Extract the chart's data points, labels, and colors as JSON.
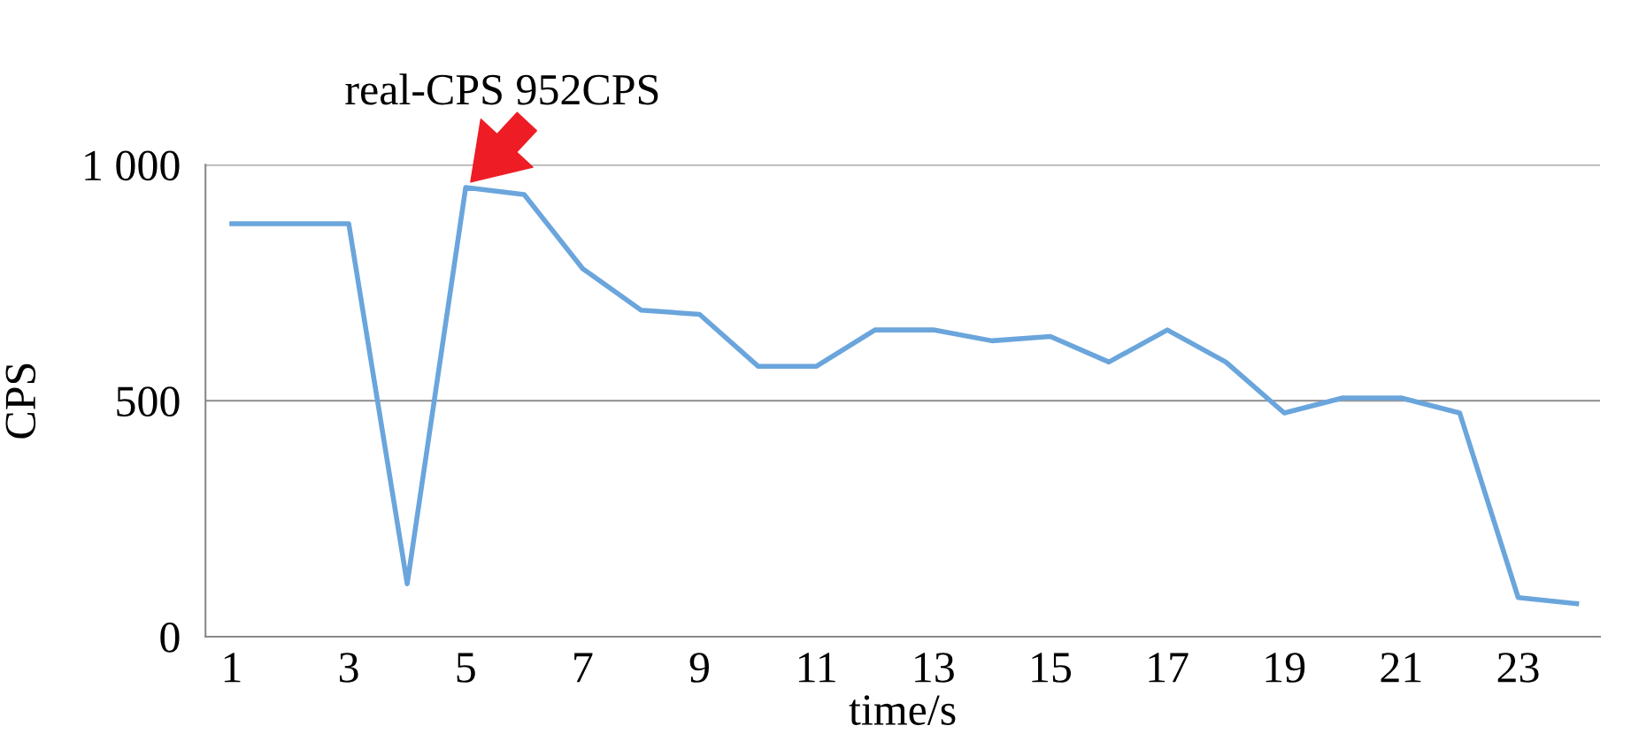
{
  "chart_data": {
    "type": "line",
    "xlabel": "time/s",
    "ylabel": "CPS",
    "x": [
      1,
      2,
      3,
      4,
      5,
      6,
      7,
      8,
      9,
      10,
      11,
      12,
      13,
      14,
      15,
      16,
      17,
      18,
      19,
      20,
      21,
      22,
      23,
      24
    ],
    "series": [
      {
        "color": "#6aa5dc",
        "values": [
          875,
          875,
          875,
          112,
          952,
          937,
          780,
          692,
          683,
          573,
          573,
          650,
          650,
          627,
          636,
          582,
          650,
          582,
          474,
          506,
          506,
          474,
          83,
          70
        ]
      }
    ],
    "xlim": [
      0.55,
      24.4
    ],
    "xticks": [
      1,
      3,
      5,
      7,
      9,
      11,
      13,
      15,
      17,
      19,
      21,
      23
    ],
    "ylim": [
      0,
      1000
    ],
    "yticks": [
      0,
      500,
      {
        "value": 1000,
        "label": "1 000"
      }
    ],
    "grid": "y",
    "marker": "none",
    "line_style": "solid",
    "annotations": [
      {
        "text": "real-CPS 952CPS",
        "x": 5,
        "y": 952
      }
    ]
  }
}
